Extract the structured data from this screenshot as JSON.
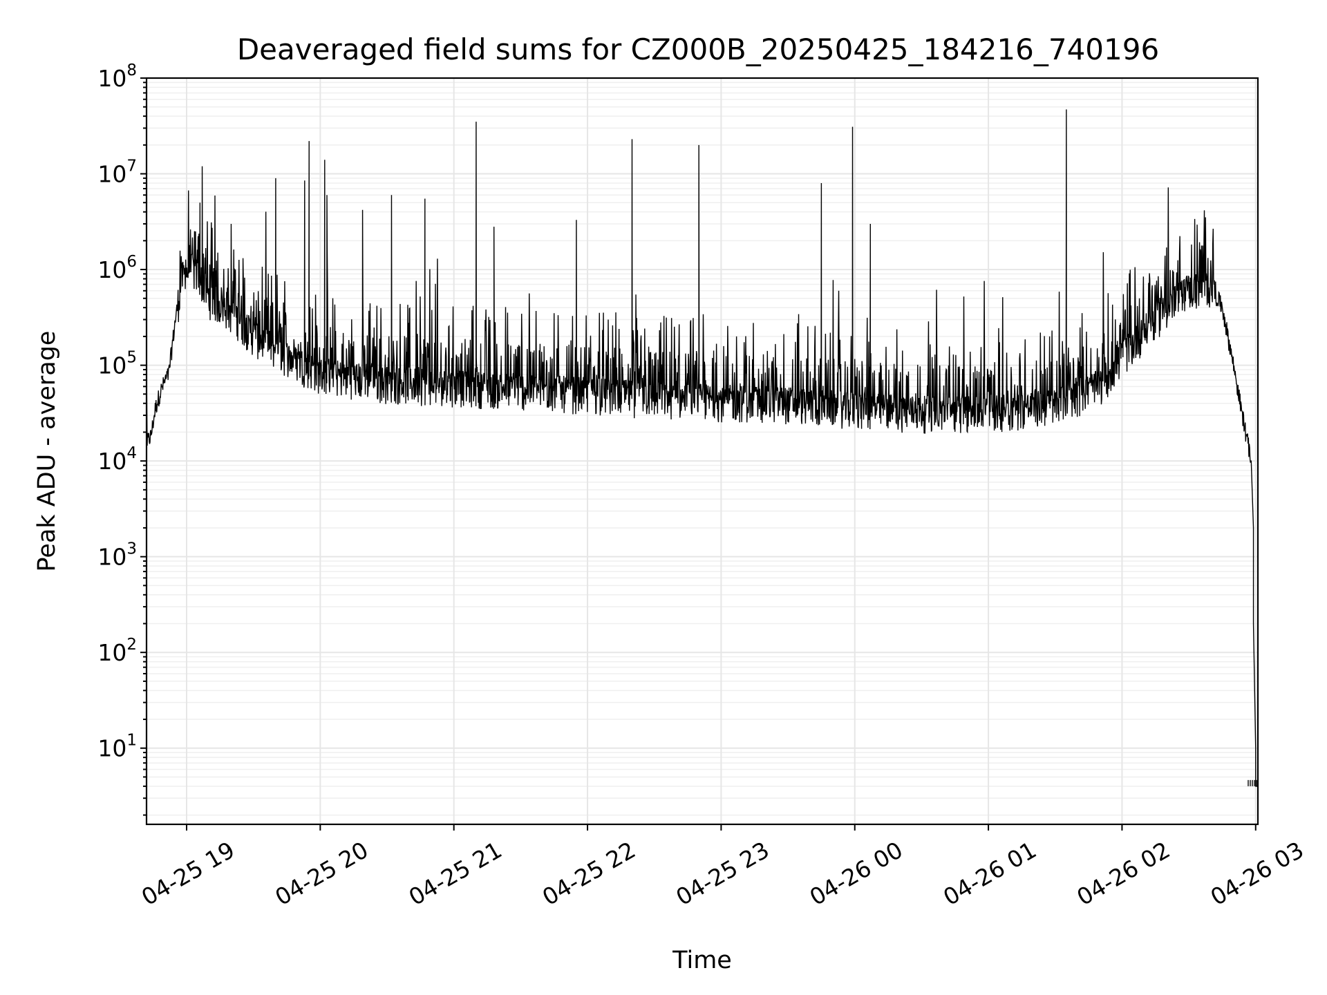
{
  "chart_data": {
    "type": "line",
    "title": "Deaveraged field sums for CZ000B_20250425_184216_740196",
    "xlabel": "Time",
    "ylabel": "Peak ADU - average",
    "yscale": "log",
    "ylim": [
      1.6,
      100000000
    ],
    "xlim": [
      "2025-04-25 18:42",
      "2025-04-26 03:01"
    ],
    "grid": true,
    "x_ticks": [
      {
        "value": "2025-04-25 19:00",
        "label": "04-25 19"
      },
      {
        "value": "2025-04-25 20:00",
        "label": "04-25 20"
      },
      {
        "value": "2025-04-25 21:00",
        "label": "04-25 21"
      },
      {
        "value": "2025-04-25 22:00",
        "label": "04-25 22"
      },
      {
        "value": "2025-04-25 23:00",
        "label": "04-25 23"
      },
      {
        "value": "2025-04-26 00:00",
        "label": "04-26 00"
      },
      {
        "value": "2025-04-26 01:00",
        "label": "04-26 01"
      },
      {
        "value": "2025-04-26 02:00",
        "label": "04-26 02"
      },
      {
        "value": "2025-04-26 03:00",
        "label": "04-26 03"
      }
    ],
    "y_ticks": [
      {
        "value": 10,
        "base": "10",
        "exp": "1"
      },
      {
        "value": 100,
        "base": "10",
        "exp": "2"
      },
      {
        "value": 1000,
        "base": "10",
        "exp": "3"
      },
      {
        "value": 10000,
        "base": "10",
        "exp": "4"
      },
      {
        "value": 100000,
        "base": "10",
        "exp": "5"
      },
      {
        "value": 1000000,
        "base": "10",
        "exp": "6"
      },
      {
        "value": 10000000,
        "base": "10",
        "exp": "7"
      },
      {
        "value": 100000000,
        "base": "10",
        "exp": "8"
      }
    ],
    "baseline": [
      [
        "2025-04-25 18:42",
        15000
      ],
      [
        "2025-04-25 18:44",
        18000
      ],
      [
        "2025-04-25 18:46",
        35000
      ],
      [
        "2025-04-25 18:48",
        50000
      ],
      [
        "2025-04-25 18:50",
        65000
      ],
      [
        "2025-04-25 18:52",
        80000
      ],
      [
        "2025-04-25 18:55",
        300000
      ],
      [
        "2025-04-25 18:58",
        800000
      ],
      [
        "2025-04-25 19:02",
        1000000
      ],
      [
        "2025-04-25 19:06",
        800000
      ],
      [
        "2025-04-25 19:10",
        500000
      ],
      [
        "2025-04-25 19:20",
        350000
      ],
      [
        "2025-04-25 19:30",
        200000
      ],
      [
        "2025-04-25 19:45",
        120000
      ],
      [
        "2025-04-25 20:00",
        80000
      ],
      [
        "2025-04-25 20:30",
        65000
      ],
      [
        "2025-04-25 21:00",
        60000
      ],
      [
        "2025-04-25 21:30",
        55000
      ],
      [
        "2025-04-25 22:00",
        50000
      ],
      [
        "2025-04-25 22:30",
        45000
      ],
      [
        "2025-04-25 23:00",
        42000
      ],
      [
        "2025-04-25 23:30",
        40000
      ],
      [
        "2025-04-26 00:00",
        35000
      ],
      [
        "2025-04-26 00:30",
        32000
      ],
      [
        "2025-04-26 01:00",
        32000
      ],
      [
        "2025-04-26 01:30",
        38000
      ],
      [
        "2025-04-26 01:50",
        60000
      ],
      [
        "2025-04-26 02:00",
        120000
      ],
      [
        "2025-04-26 02:15",
        300000
      ],
      [
        "2025-04-26 02:30",
        600000
      ],
      [
        "2025-04-26 02:40",
        650000
      ],
      [
        "2025-04-26 02:45",
        400000
      ],
      [
        "2025-04-26 02:50",
        100000
      ],
      [
        "2025-04-26 02:54",
        30000
      ],
      [
        "2025-04-26 02:58",
        10000
      ],
      [
        "2025-04-26 02:59",
        1000
      ],
      [
        "2025-04-26 03:00",
        10
      ],
      [
        "2025-04-26 03:00",
        4
      ],
      [
        "2025-04-26 03:01",
        4
      ]
    ],
    "spikes": [
      [
        "2025-04-25 19:04",
        2500000
      ],
      [
        "2025-04-25 19:06",
        5000000
      ],
      [
        "2025-04-25 19:07",
        12000000
      ],
      [
        "2025-04-25 19:14",
        1500000
      ],
      [
        "2025-04-25 19:20",
        3000000
      ],
      [
        "2025-04-25 19:40",
        9000000
      ],
      [
        "2025-04-25 19:53",
        8500000
      ],
      [
        "2025-04-25 19:55",
        22000000
      ],
      [
        "2025-04-25 20:02",
        14000000
      ],
      [
        "2025-04-25 20:03",
        6000000
      ],
      [
        "2025-04-25 20:19",
        4200000
      ],
      [
        "2025-04-25 20:32",
        6000000
      ],
      [
        "2025-04-25 20:47",
        5500000
      ],
      [
        "2025-04-25 21:10",
        35000000
      ],
      [
        "2025-04-25 21:18",
        2800000
      ],
      [
        "2025-04-25 21:55",
        3300000
      ],
      [
        "2025-04-25 22:20",
        23000000
      ],
      [
        "2025-04-25 22:50",
        20000000
      ],
      [
        "2025-04-25 23:45",
        8000000
      ],
      [
        "2025-04-25 23:59",
        31000000
      ],
      [
        "2025-04-26 00:07",
        3000000
      ],
      [
        "2025-04-26 01:35",
        47000000
      ],
      [
        "2025-04-26 02:20",
        1700000
      ]
    ]
  }
}
